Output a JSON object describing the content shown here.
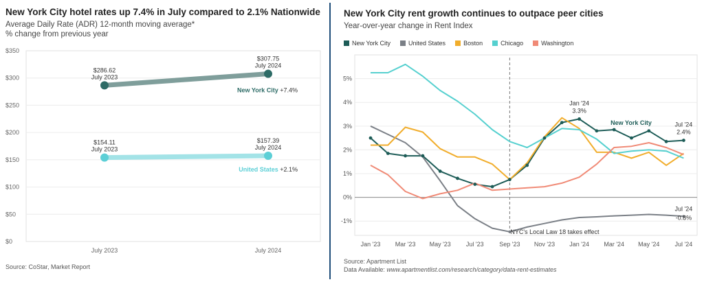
{
  "chart_data": [
    {
      "type": "line",
      "title": "New York City hotel rates up 7.4% in July compared to 2.1% Nationwide",
      "subtitle_lines": [
        "Average Daily Rate (ADR) 12-month moving average*",
        "% change from previous year"
      ],
      "source": "Source: CoStar, Market Report",
      "categories": [
        "July 2023",
        "July 2024"
      ],
      "ylim": [
        0,
        350
      ],
      "yticks": [
        "$0",
        "$50",
        "$100",
        "$150",
        "$200",
        "$250",
        "$300",
        "$350"
      ],
      "series": [
        {
          "name": "New York City",
          "change": "+7.4%",
          "values": [
            286.62,
            307.75
          ],
          "value_labels": [
            "$286.62",
            "$307.75"
          ],
          "point_labels": [
            "July 2023",
            "July 2024"
          ],
          "color": "#2d6b66",
          "line_color": "#7f9e9b"
        },
        {
          "name": "United States",
          "change": "+2.1%",
          "values": [
            154.11,
            157.39
          ],
          "value_labels": [
            "$154.11",
            "$157.39"
          ],
          "point_labels": [
            "July 2023",
            "July 2024"
          ],
          "color": "#5ccfd6",
          "line_color": "#a3e3e7"
        }
      ],
      "grid": true
    },
    {
      "type": "line",
      "title": "New York City rent growth continues to outpace peer cities",
      "subtitle": "Year-over-year change in Rent Index",
      "source_lines": [
        "Source: Apartment List"
      ],
      "data_available_label": "Data Available:",
      "data_available_url": "www.apartmentlist.com/research/category/data-rent-estimates",
      "x": [
        "Jan '23",
        "Feb '23",
        "Mar '23",
        "Apr '23",
        "May '23",
        "Jun '23",
        "Jul '23",
        "Aug '23",
        "Sep '23",
        "Oct '23",
        "Nov '23",
        "Dec '23",
        "Jan '24",
        "Feb '24",
        "Mar '24",
        "Apr '24",
        "May '24",
        "Jun '24",
        "Jul '24"
      ],
      "xtick_labels": [
        "Jan '23",
        "Mar '23",
        "May '23",
        "Jul '23",
        "Sep '23",
        "Nov '23",
        "Jan '24",
        "Mar '24",
        "May '24",
        "Jul '24"
      ],
      "ylim": [
        -1.6,
        6.0
      ],
      "yticks": [
        -1,
        0,
        1,
        2,
        3,
        4,
        5
      ],
      "ytick_labels": [
        "-1%",
        "0%",
        "1%",
        "2%",
        "3%",
        "4%",
        "5%"
      ],
      "series": [
        {
          "name": "New York City",
          "color": "#1d5c57",
          "marker": true,
          "values": [
            2.5,
            1.85,
            1.75,
            1.75,
            1.1,
            0.8,
            0.55,
            0.45,
            0.75,
            1.35,
            2.5,
            3.15,
            3.3,
            2.8,
            2.85,
            2.5,
            2.8,
            2.35,
            2.4
          ]
        },
        {
          "name": "United States",
          "color": "#7a7f86",
          "values": [
            3.0,
            2.65,
            2.3,
            1.7,
            0.7,
            -0.35,
            -0.9,
            -1.3,
            -1.45,
            -1.25,
            -1.1,
            -0.95,
            -0.85,
            -0.82,
            -0.78,
            -0.75,
            -0.72,
            -0.75,
            -0.8
          ]
        },
        {
          "name": "Boston",
          "color": "#f1ad2b",
          "values": [
            2.2,
            2.2,
            2.95,
            2.75,
            2.05,
            1.7,
            1.7,
            1.4,
            0.75,
            1.45,
            2.55,
            3.35,
            2.9,
            1.9,
            1.9,
            1.65,
            1.9,
            1.35,
            1.85
          ]
        },
        {
          "name": "Chicago",
          "color": "#55d0cf",
          "values": [
            5.25,
            5.25,
            5.6,
            5.1,
            4.5,
            4.05,
            3.5,
            2.85,
            2.35,
            2.1,
            2.5,
            2.9,
            2.85,
            2.45,
            1.85,
            1.95,
            2.0,
            1.95,
            1.65
          ]
        },
        {
          "name": "Washington",
          "color": "#f08a76",
          "values": [
            1.35,
            0.95,
            0.25,
            -0.05,
            0.15,
            0.3,
            0.6,
            0.3,
            0.35,
            0.4,
            0.45,
            0.6,
            0.85,
            1.4,
            2.1,
            2.15,
            2.3,
            2.1,
            1.8
          ]
        }
      ],
      "annotations": [
        {
          "lines": [
            "Jan '24",
            "3.3%"
          ]
        },
        {
          "label": "New York City"
        },
        {
          "lines": [
            "Jul '24",
            "2.4%"
          ]
        },
        {
          "lines": [
            "Jul '24",
            "-0.8%"
          ]
        },
        {
          "label": "NYC's Local Law 18 takes effect"
        }
      ],
      "grid": true,
      "legend_position": "top"
    }
  ]
}
